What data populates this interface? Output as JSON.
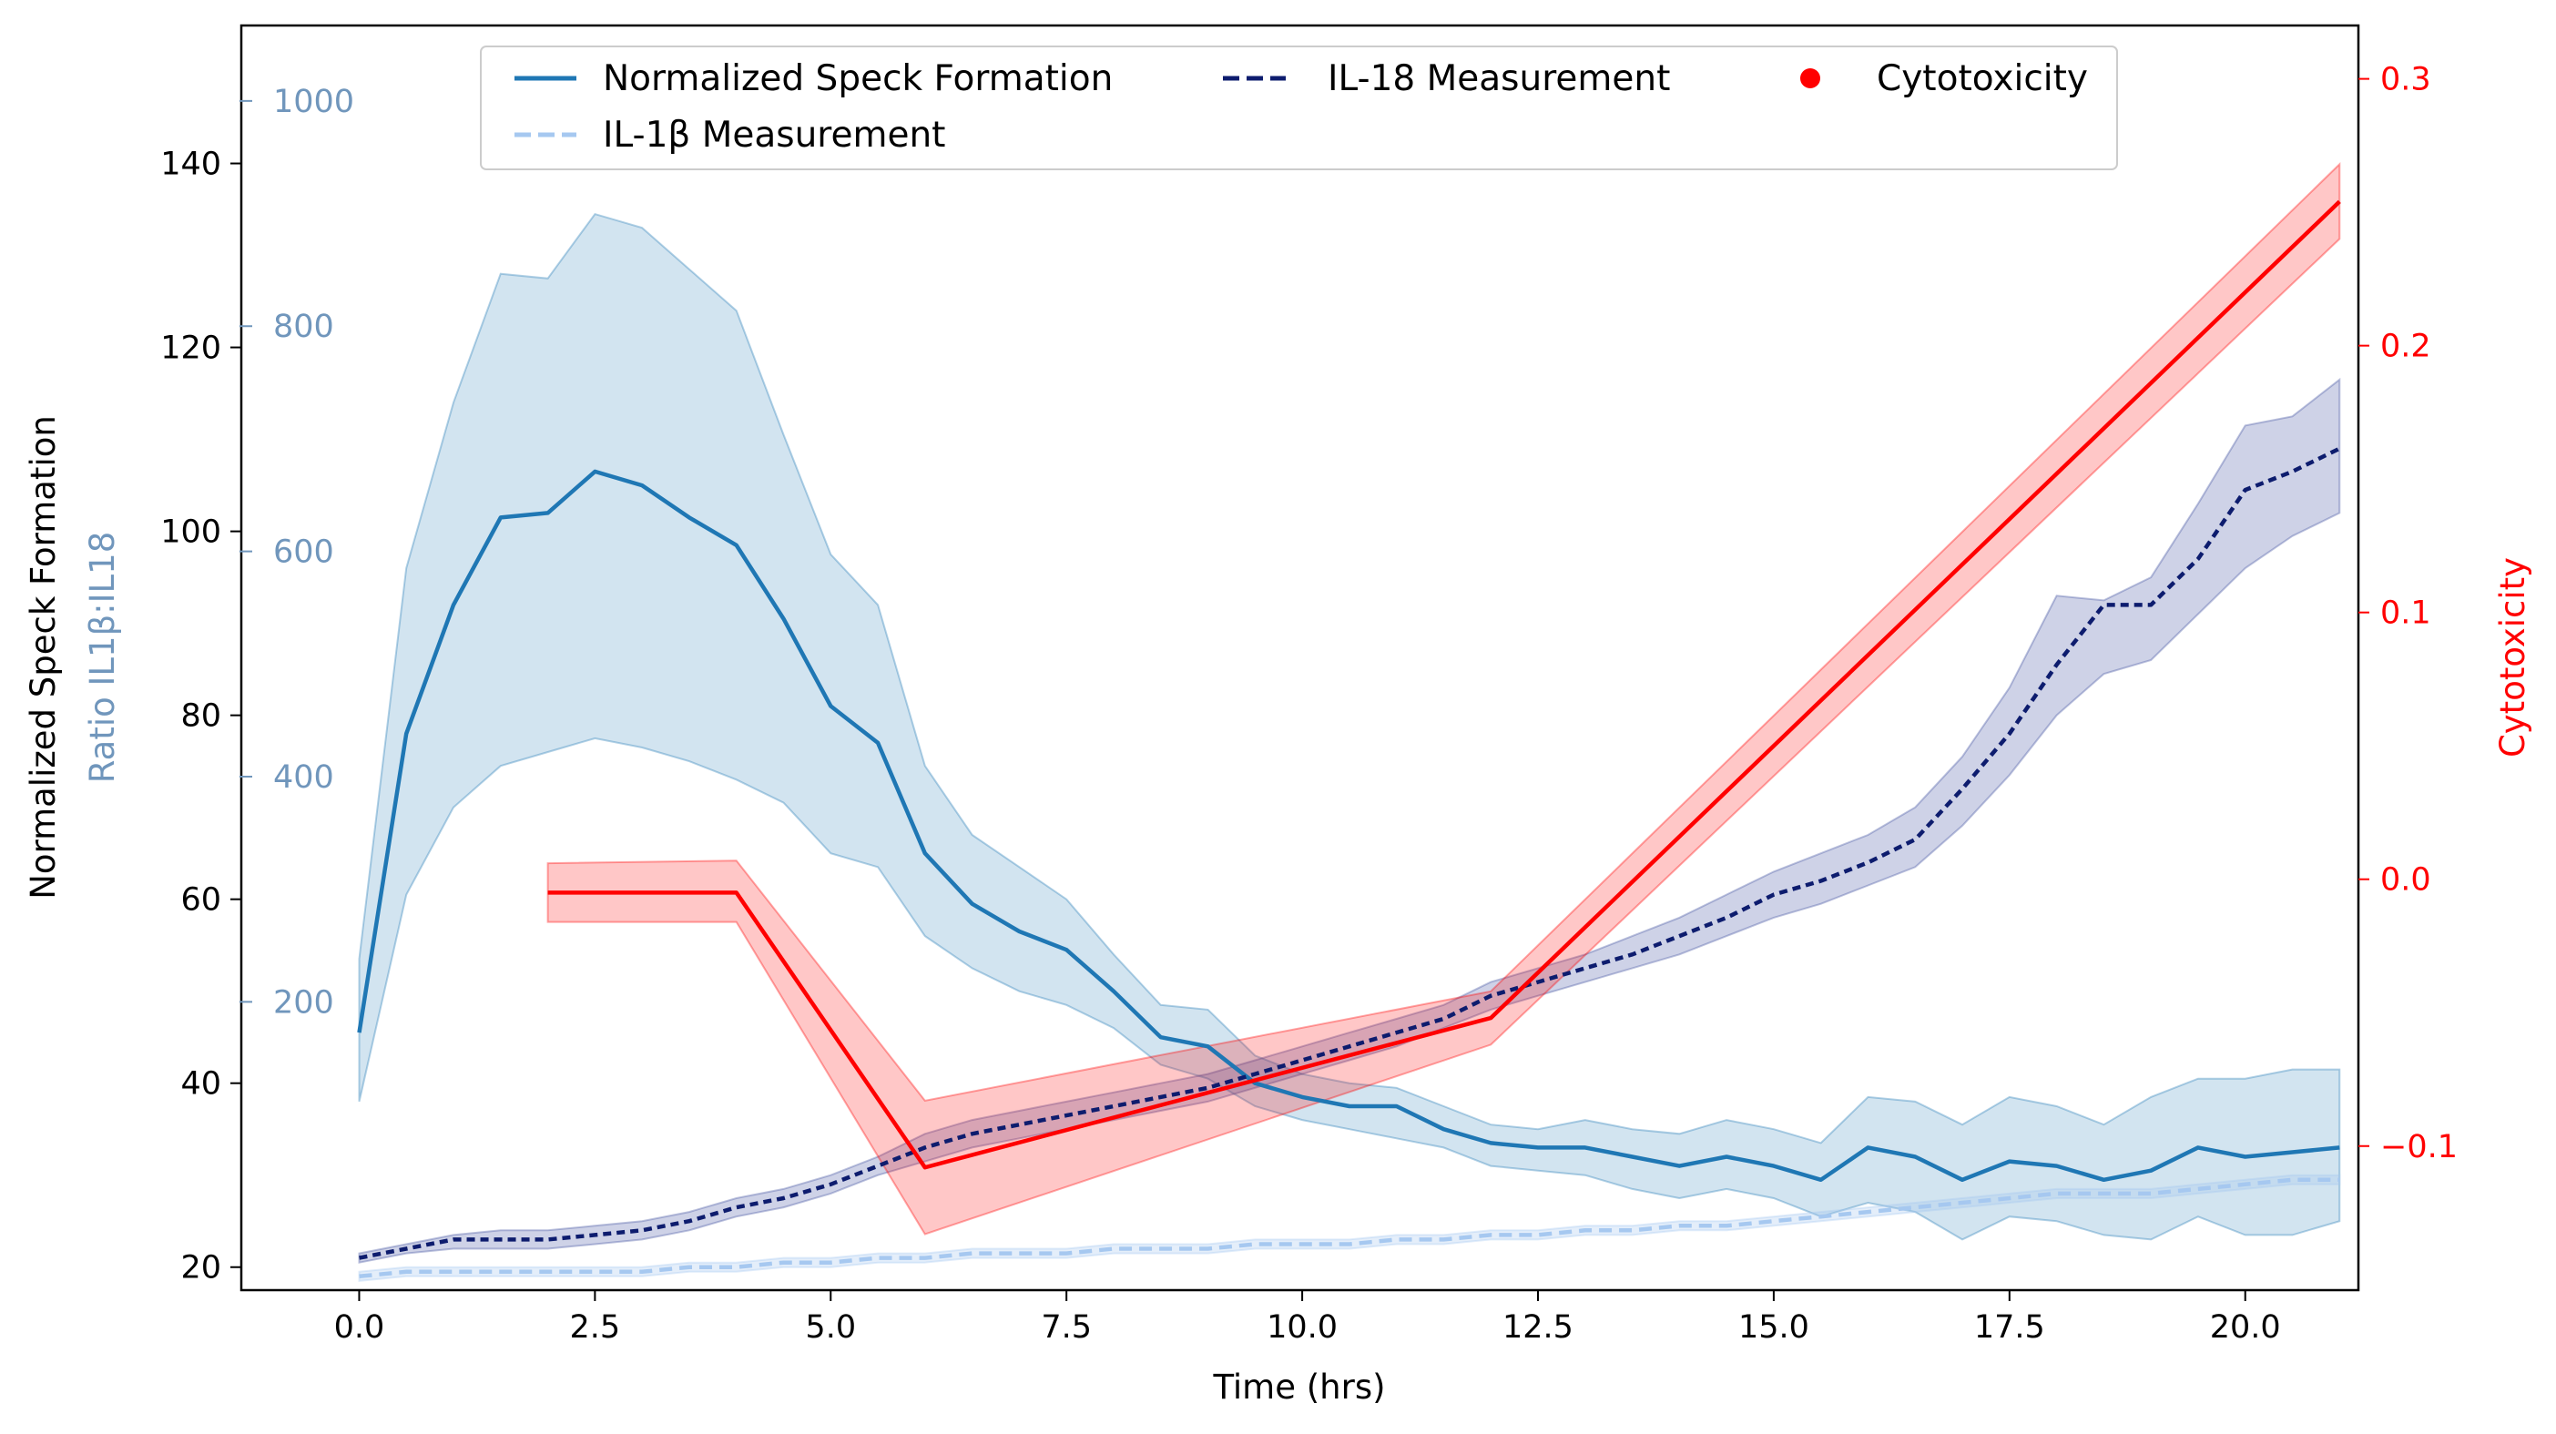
{
  "chart_data": {
    "type": "line",
    "xlabel": "Time (hrs)",
    "ylabel_left": "Normalized Speck Formation",
    "ylabel_left_secondary": "Ratio IL1β:IL18",
    "ylabel_right": "Cytotoxicity",
    "xlim": [
      -1.25,
      21.2
    ],
    "ylim_left": [
      17.5,
      155
    ],
    "ylim_ratio": [
      -56,
      1067
    ],
    "ylim_right": [
      -0.154,
      0.32
    ],
    "x_ticks": [
      "0.0",
      "2.5",
      "5.0",
      "7.5",
      "10.0",
      "12.5",
      "15.0",
      "17.5",
      "20.0"
    ],
    "y_left_ticks": [
      "20",
      "40",
      "60",
      "80",
      "100",
      "120",
      "140"
    ],
    "y_ratio_ticks": [
      "200",
      "400",
      "600",
      "800",
      "1000"
    ],
    "y_right_ticks": [
      "−0.1",
      "0.0",
      "0.1",
      "0.2",
      "0.3"
    ],
    "legend": {
      "placement": "top-center",
      "entries": [
        "Normalized Speck Formation",
        "IL-18 Measurement",
        "Cytotoxicity",
        "IL-1β Measurement"
      ]
    },
    "colors": {
      "speck": "#1f77b4",
      "il18": "#0d1c6e",
      "il1b": "#a6c8f0",
      "cyto": "#ff0000",
      "ratio_axis": "#7096bc"
    },
    "x": [
      0,
      0.5,
      1,
      1.5,
      2,
      2.5,
      3,
      3.5,
      4,
      4.5,
      5,
      5.5,
      6,
      6.5,
      7,
      7.5,
      8,
      8.5,
      9,
      9.5,
      10,
      10.5,
      11,
      11.5,
      12,
      12.5,
      13,
      13.5,
      14,
      14.5,
      15,
      15.5,
      16,
      16.5,
      17,
      17.5,
      18,
      18.5,
      19,
      19.5,
      20,
      20.5,
      21
    ],
    "series": [
      {
        "name": "Normalized Speck Formation",
        "axis": "left",
        "style": "solid",
        "values": [
          45.5,
          78,
          92,
          101.5,
          102,
          106.5,
          105,
          101.5,
          98.5,
          90.5,
          81,
          77,
          65,
          59.5,
          56.5,
          54.5,
          50,
          45,
          44,
          40,
          38.5,
          37.5,
          37.5,
          35,
          33.5,
          33,
          33,
          32,
          31,
          32,
          31,
          29.5,
          33,
          32,
          29.5,
          31.5,
          31,
          29.5,
          30.5,
          33,
          32,
          32.5,
          33
        ],
        "band_low": [
          38,
          60.5,
          70,
          74.5,
          76,
          77.5,
          76.5,
          75,
          73,
          70.5,
          65,
          63.5,
          56,
          52.5,
          50,
          48.5,
          46,
          42,
          40.5,
          37.5,
          36,
          35,
          34,
          33,
          31,
          30.5,
          30,
          28.5,
          27.5,
          28.5,
          27.5,
          25.5,
          27,
          26,
          23,
          25.5,
          25,
          23.5,
          23,
          25.5,
          23.5,
          23.5,
          25
        ],
        "band_high": [
          53.5,
          96,
          114,
          128,
          127.5,
          134.5,
          133,
          128.5,
          124,
          110.5,
          97.5,
          92,
          74.5,
          67,
          63.5,
          60,
          54,
          48.5,
          48,
          43,
          41,
          40,
          39.5,
          37.5,
          35.5,
          35,
          36,
          35,
          34.5,
          36,
          35,
          33.5,
          38.5,
          38,
          35.5,
          38.5,
          37.5,
          35.5,
          38.5,
          40.5,
          40.5,
          41.5,
          41.5
        ]
      },
      {
        "name": "IL-18 Measurement",
        "axis": "left",
        "style": "dotted",
        "values": [
          21,
          22,
          23,
          23,
          23,
          23.5,
          24,
          25,
          26.5,
          27.5,
          29,
          31,
          33,
          34.5,
          35.5,
          36.5,
          37.5,
          38.5,
          39.5,
          41,
          42.5,
          44,
          45.5,
          47,
          49.5,
          51,
          52.5,
          54,
          56,
          58,
          60.5,
          62,
          64,
          66.5,
          72,
          78,
          85.5,
          92,
          92,
          97,
          104.5,
          106.5,
          109
        ],
        "band_low": [
          20.5,
          21.5,
          22,
          22,
          22,
          22.5,
          23,
          24,
          25.5,
          26.5,
          28,
          30,
          31.5,
          33,
          34,
          35,
          36,
          37,
          38,
          39.5,
          41,
          42.5,
          44,
          46,
          48,
          49.5,
          51,
          52.5,
          54,
          56,
          58,
          59.5,
          61.5,
          63.5,
          68,
          73.5,
          80,
          84.5,
          86,
          91,
          96,
          99.5,
          102
        ],
        "band_high": [
          21.5,
          22.5,
          23.5,
          24,
          24,
          24.5,
          25,
          26,
          27.5,
          28.5,
          30,
          32,
          34.5,
          36,
          37,
          38,
          39,
          40,
          41,
          42.5,
          44,
          45.5,
          47,
          48.5,
          51,
          52.5,
          54,
          56,
          58,
          60.5,
          63,
          65,
          67,
          70,
          75.5,
          83,
          93,
          92.5,
          95,
          103,
          111.5,
          112.5,
          116.5
        ]
      },
      {
        "name": "IL-1β Measurement",
        "axis": "left",
        "style": "dashed",
        "values": [
          19,
          19.5,
          19.5,
          19.5,
          19.5,
          19.5,
          19.5,
          20,
          20,
          20.5,
          20.5,
          21,
          21,
          21.5,
          21.5,
          21.5,
          22,
          22,
          22,
          22.5,
          22.5,
          22.5,
          23,
          23,
          23.5,
          23.5,
          24,
          24,
          24.5,
          24.5,
          25,
          25.5,
          26,
          26.5,
          27,
          27.5,
          28,
          28,
          28,
          28.5,
          29,
          29.5,
          29.5
        ],
        "band_low": [
          18.5,
          19,
          19,
          19,
          19,
          19,
          19,
          19.5,
          19.5,
          20,
          20,
          20.5,
          20.5,
          21,
          21,
          21,
          21.5,
          21.5,
          21.5,
          22,
          22,
          22,
          22.5,
          22.5,
          23,
          23,
          23.5,
          23.5,
          24,
          24,
          24.5,
          25,
          25.5,
          26,
          26.5,
          27,
          27.5,
          27.5,
          27.5,
          28,
          28.5,
          29,
          29
        ],
        "band_high": [
          19.5,
          20,
          20,
          20,
          20,
          20,
          20,
          20.5,
          20.5,
          21,
          21,
          21.5,
          21.5,
          22,
          22,
          22,
          22.5,
          22.5,
          22.5,
          23,
          23,
          23,
          23.5,
          23.5,
          24,
          24,
          24.5,
          24.5,
          25,
          25,
          25.5,
          26,
          26.5,
          27,
          27.5,
          28,
          28.5,
          28.5,
          28.5,
          29,
          29.5,
          30,
          30
        ]
      },
      {
        "name": "Cytotoxicity",
        "axis": "right",
        "style": "solid",
        "x": [
          2,
          4,
          6,
          12,
          21
        ],
        "values": [
          -0.005,
          -0.005,
          -0.108,
          -0.052,
          0.254
        ],
        "band_low": [
          -0.016,
          -0.016,
          -0.133,
          -0.062,
          0.24
        ],
        "band_high": [
          0.006,
          0.007,
          -0.083,
          -0.042,
          0.268
        ]
      }
    ]
  }
}
